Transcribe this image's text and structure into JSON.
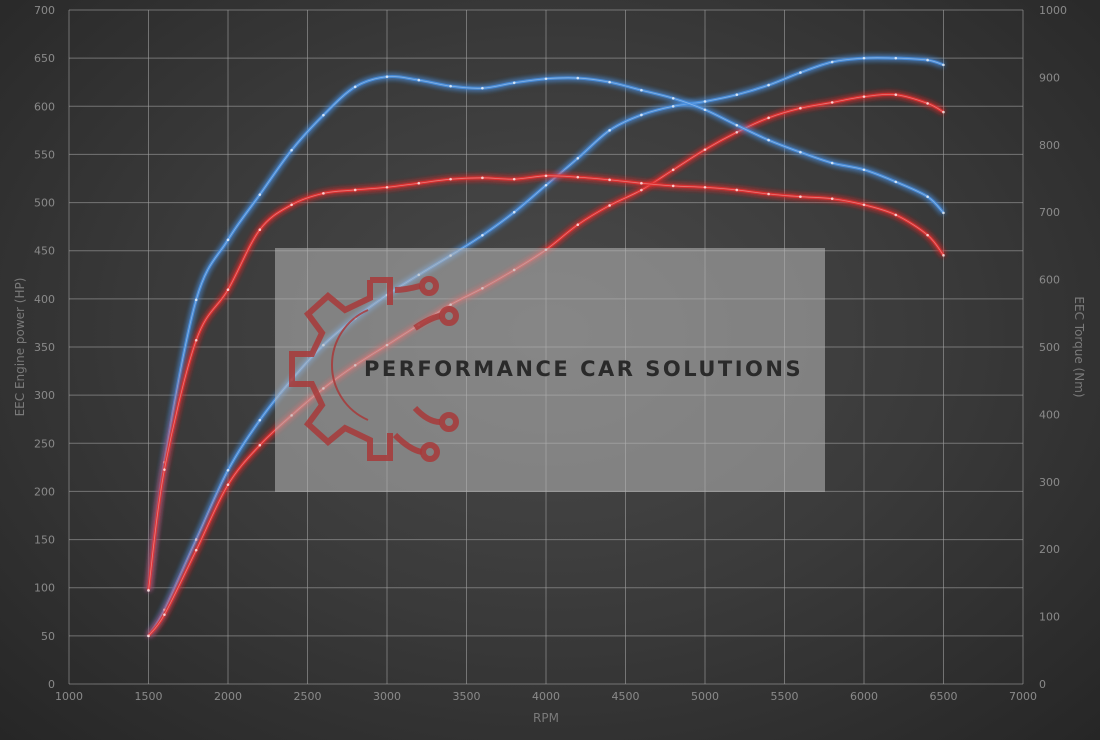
{
  "chart_data": {
    "type": "line",
    "title": "",
    "xlabel": "RPM",
    "ylabel": "EEC Engine power (HP)",
    "y2label": "EEC Torque (Nm)",
    "xlim": [
      1000,
      7000
    ],
    "ylim": [
      0,
      700
    ],
    "y2lim": [
      0,
      1000
    ],
    "xticks": [
      1000,
      1500,
      2000,
      2500,
      3000,
      3500,
      4000,
      4500,
      5000,
      5500,
      6000,
      6500,
      7000
    ],
    "yticks": [
      0,
      50,
      100,
      150,
      200,
      250,
      300,
      350,
      400,
      450,
      500,
      550,
      600,
      650,
      700
    ],
    "y2ticks": [
      0,
      100,
      200,
      300,
      400,
      500,
      600,
      700,
      800,
      900,
      1000
    ],
    "grid": true,
    "x": [
      1500,
      1600,
      1800,
      2000,
      2200,
      2400,
      2600,
      2800,
      3000,
      3200,
      3400,
      3600,
      3800,
      4000,
      4200,
      4400,
      4600,
      4800,
      5000,
      5200,
      5400,
      5600,
      5800,
      6000,
      6200,
      6400,
      6500
    ],
    "series": [
      {
        "axis": "left",
        "color": "#4a90e2",
        "values": [
          50,
          77,
          150,
          222,
          274,
          316,
          352,
          380,
          404,
          425,
          445,
          466,
          490,
          518,
          546,
          575,
          591,
          600,
          605,
          612,
          622,
          635,
          646,
          650,
          650,
          648,
          643
        ]
      },
      {
        "axis": "left",
        "color": "#e53030",
        "values": [
          50,
          72,
          139,
          207,
          248,
          279,
          307,
          331,
          352,
          373,
          394,
          411,
          430,
          451,
          477,
          497,
          513,
          534,
          555,
          573,
          588,
          598,
          604,
          610,
          612,
          603,
          594
        ]
      },
      {
        "axis": "right",
        "color": "#4a90e2",
        "values": [
          139,
          329,
          570,
          659,
          726,
          792,
          844,
          886,
          901,
          896,
          887,
          884,
          892,
          898,
          899,
          893,
          881,
          869,
          852,
          829,
          807,
          789,
          773,
          763,
          745,
          723,
          699
        ]
      },
      {
        "axis": "right",
        "color": "#e53030",
        "values": [
          139,
          318,
          510,
          585,
          674,
          711,
          728,
          733,
          737,
          743,
          749,
          751,
          749,
          754,
          752,
          748,
          743,
          739,
          737,
          733,
          727,
          723,
          720,
          711,
          696,
          666,
          636
        ]
      }
    ]
  },
  "watermark": {
    "text": "PERFORMANCE CAR SOLUTIONS",
    "logo_color": "#a83a3a"
  }
}
